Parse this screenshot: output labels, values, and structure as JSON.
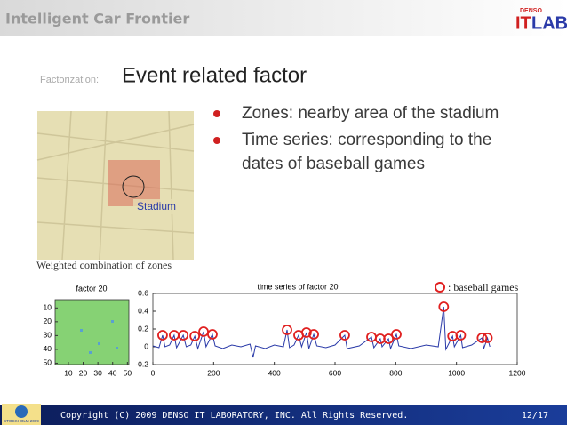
{
  "header": {
    "title": "Intelligent Car Frontier",
    "logo": {
      "brand": "DENSO",
      "name1": "IT",
      "name2": "LAB"
    }
  },
  "slide": {
    "label": "Factorization:",
    "title": "Event related factor",
    "bullets": [
      "Zones: nearby area of the stadium",
      "Time series: corresponding to the dates of baseball games"
    ],
    "map": {
      "label": "Stadium",
      "caption": "Weighted combination of zones"
    },
    "legend": ": baseball games"
  },
  "heatmap": {
    "title": "factor 20",
    "xlim": [
      1,
      51
    ],
    "ylim": [
      4,
      51
    ],
    "xticks": [
      10,
      20,
      30,
      40,
      50
    ],
    "yticks": [
      10,
      20,
      30,
      40,
      50
    ]
  },
  "timeseries": {
    "type": "line",
    "title": "time series of factor 20",
    "color": "#2a3aa8",
    "xlim": [
      0,
      1200
    ],
    "ylim": [
      -0.2,
      0.6
    ],
    "xticks": [
      0,
      200,
      400,
      600,
      800,
      1000,
      1200
    ],
    "yticks": [
      -0.2,
      0,
      0.2,
      0.4,
      0.6
    ],
    "x": [
      0,
      20,
      32,
      40,
      55,
      70,
      78,
      100,
      110,
      125,
      138,
      148,
      167,
      175,
      196,
      205,
      230,
      260,
      290,
      320,
      330,
      338,
      370,
      400,
      430,
      442,
      450,
      465,
      480,
      490,
      506,
      514,
      530,
      540,
      570,
      600,
      632,
      640,
      680,
      720,
      728,
      749,
      755,
      776,
      783,
      802,
      810,
      850,
      900,
      940,
      958,
      965,
      987,
      993,
      1014,
      1020,
      1050,
      1084,
      1090,
      1102,
      1110
    ],
    "values": [
      0.01,
      -0.01,
      0.13,
      0.0,
      0.02,
      0.13,
      -0.01,
      0.13,
      0.0,
      0.02,
      0.12,
      -0.02,
      0.17,
      0.0,
      0.14,
      0.01,
      -0.02,
      0.02,
      0.0,
      0.03,
      -0.12,
      0.01,
      -0.02,
      0.02,
      0.0,
      0.19,
      -0.01,
      0.02,
      0.13,
      0.0,
      0.16,
      -0.02,
      0.14,
      0.01,
      -0.01,
      0.02,
      0.13,
      -0.02,
      0.01,
      0.11,
      -0.01,
      0.09,
      0.0,
      0.09,
      -0.02,
      0.14,
      0.01,
      -0.02,
      0.02,
      0.0,
      0.45,
      -0.03,
      0.12,
      0.0,
      0.13,
      -0.01,
      0.02,
      0.1,
      -0.02,
      0.1,
      0.0
    ],
    "games": {
      "color": "#e02020",
      "x": [
        32,
        70,
        100,
        138,
        167,
        196,
        442,
        480,
        506,
        530,
        632,
        720,
        749,
        776,
        802,
        958,
        987,
        1014,
        1084,
        1102
      ],
      "values": [
        0.13,
        0.13,
        0.13,
        0.12,
        0.17,
        0.14,
        0.19,
        0.13,
        0.16,
        0.14,
        0.13,
        0.11,
        0.09,
        0.09,
        0.14,
        0.45,
        0.12,
        0.13,
        0.1,
        0.1
      ]
    }
  },
  "footer": {
    "badge": "STOCKHOLM 2009",
    "copyright": "Copyright (C) 2009 DENSO IT LABORATORY, INC. All Rights Reserved.",
    "page": "12/17"
  }
}
